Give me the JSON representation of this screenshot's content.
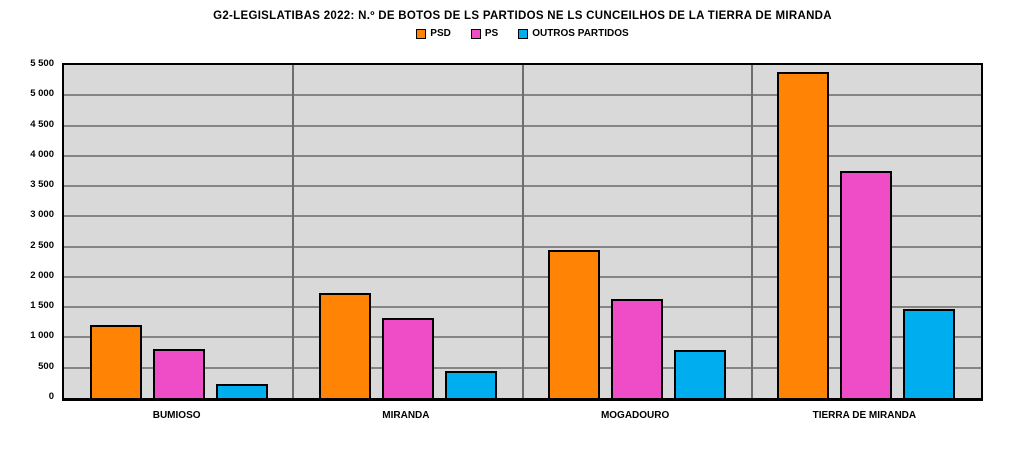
{
  "title": "G2-LEGISLATIBAS 2022: N.º DE BOTOS DE LS PARTIDOS NE LS CUNCEILHOS DE LA TIERRA DE MIRANDA",
  "chart_data": {
    "type": "bar",
    "categories": [
      "BUMIOSO",
      "MIRANDA",
      "MOGADOURO",
      "TIERRA DE MIRANDA"
    ],
    "series": [
      {
        "name": "PSD",
        "color": "#FF8405",
        "values": [
          1210,
          1740,
          2440,
          5390
        ]
      },
      {
        "name": "PS",
        "color": "#EE4DC7",
        "values": [
          805,
          1320,
          1630,
          3755
        ]
      },
      {
        "name": "OUTROS PARTIDOS",
        "color": "#00AEEF",
        "values": [
          235,
          445,
          790,
          1470
        ]
      }
    ],
    "ylim": [
      0,
      5500
    ],
    "ytick_step": 500,
    "ytick_labels": [
      "0",
      "500",
      "1 000",
      "1 500",
      "2 000",
      "2 500",
      "3 000",
      "3 500",
      "4 000",
      "4 500",
      "5 000",
      "5 500"
    ],
    "xlabel": "",
    "ylabel": "",
    "grid": "on",
    "legend_position": "top",
    "plot_background": "#D9D9D9",
    "gridline_color": "#858585"
  }
}
